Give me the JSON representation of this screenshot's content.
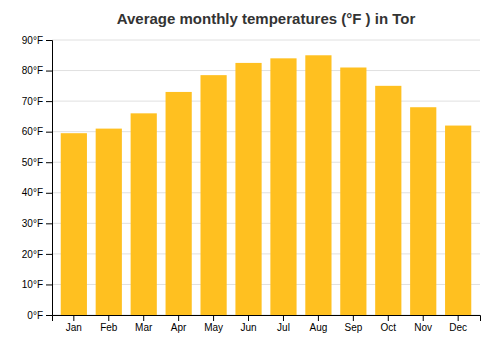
{
  "chart_data": {
    "type": "bar",
    "title": "Average monthly temperatures (°F ) in Tor",
    "categories": [
      "Jan",
      "Feb",
      "Mar",
      "Apr",
      "May",
      "Jun",
      "Jul",
      "Aug",
      "Sep",
      "Oct",
      "Nov",
      "Dec"
    ],
    "values": [
      59.5,
      61,
      66,
      73,
      78.5,
      82.5,
      84,
      85,
      81,
      75,
      68,
      62
    ],
    "color": "#FFC020",
    "ylim": [
      0,
      90
    ],
    "yticks": [
      {
        "value": 0,
        "label": "0°F"
      },
      {
        "value": 10,
        "label": "10°F"
      },
      {
        "value": 20,
        "label": "20°F"
      },
      {
        "value": 30,
        "label": "30°F"
      },
      {
        "value": 40,
        "label": "40°F"
      },
      {
        "value": 50,
        "label": "50°F"
      },
      {
        "value": 60,
        "label": "60°F"
      },
      {
        "value": 70,
        "label": "70°F"
      },
      {
        "value": 80,
        "label": "80°F"
      },
      {
        "value": 90,
        "label": "90°F"
      }
    ],
    "grid": true
  }
}
